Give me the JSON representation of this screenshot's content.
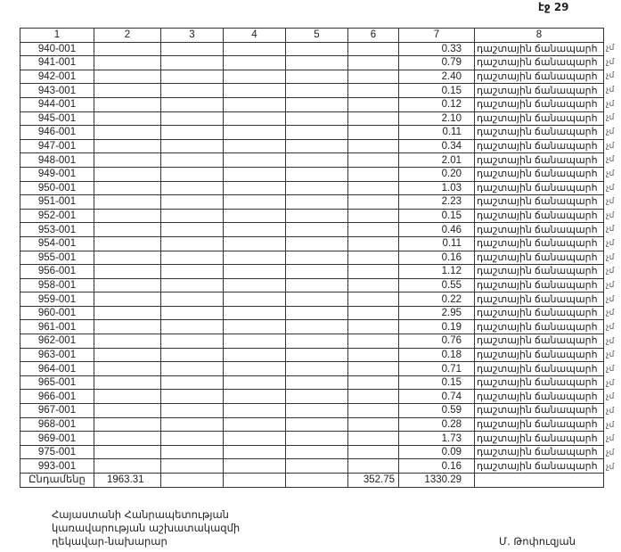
{
  "page_label": "էջ 29",
  "columns": [
    "1",
    "2",
    "3",
    "4",
    "5",
    "6",
    "7",
    "8"
  ],
  "rows": [
    {
      "id": "940-001",
      "c7": "0.33",
      "c8": "դաշտային ճանապարհ"
    },
    {
      "id": "941-001",
      "c7": "0.79",
      "c8": "դաշտային ճանապարհ"
    },
    {
      "id": "942-001",
      "c7": "2.40",
      "c8": "դաշտային ճանապարհ"
    },
    {
      "id": "943-001",
      "c7": "0.15",
      "c8": "դաշտային ճանապարհ"
    },
    {
      "id": "944-001",
      "c7": "0.12",
      "c8": "դաշտային ճանապարհ"
    },
    {
      "id": "945-001",
      "c7": "2.10",
      "c8": "դաշտային ճանապարհ"
    },
    {
      "id": "946-001",
      "c7": "0.11",
      "c8": "դաշտային ճանապարհ"
    },
    {
      "id": "947-001",
      "c7": "0.34",
      "c8": "դաշտային ճանապարհ"
    },
    {
      "id": "948-001",
      "c7": "2.01",
      "c8": "դաշտային ճանապարհ"
    },
    {
      "id": "949-001",
      "c7": "0.20",
      "c8": "դաշտային ճանապարհ"
    },
    {
      "id": "950-001",
      "c7": "1.03",
      "c8": "դաշտային ճանապարհ"
    },
    {
      "id": "951-001",
      "c7": "2.23",
      "c8": "դաշտային ճանապարհ"
    },
    {
      "id": "952-001",
      "c7": "0.15",
      "c8": "դաշտային ճանապարհ"
    },
    {
      "id": "953-001",
      "c7": "0.46",
      "c8": "դաշտային ճանապարհ"
    },
    {
      "id": "954-001",
      "c7": "0.11",
      "c8": "դաշտային ճանապարհ"
    },
    {
      "id": "955-001",
      "c7": "0.16",
      "c8": "դաշտային ճանապարհ"
    },
    {
      "id": "956-001",
      "c7": "1.12",
      "c8": "դաշտային ճանապարհ"
    },
    {
      "id": "958-001",
      "c7": "0.55",
      "c8": "դաշտային ճանապարհ"
    },
    {
      "id": "959-001",
      "c7": "0.22",
      "c8": "դաշտային ճանապարհ"
    },
    {
      "id": "960-001",
      "c7": "2.95",
      "c8": "դաշտային ճանապարհ"
    },
    {
      "id": "961-001",
      "c7": "0.19",
      "c8": "դաշտային ճանապարհ"
    },
    {
      "id": "962-001",
      "c7": "0.76",
      "c8": "դաշտային ճանապարհ"
    },
    {
      "id": "963-001",
      "c7": "0.18",
      "c8": "դաշտային ճանապարհ"
    },
    {
      "id": "964-001",
      "c7": "0.71",
      "c8": "դաշտային ճանապարհ"
    },
    {
      "id": "965-001",
      "c7": "0.15",
      "c8": "դաշտային ճանապարհ"
    },
    {
      "id": "966-001",
      "c7": "0.74",
      "c8": "դաշտային ճանապարհ"
    },
    {
      "id": "967-001",
      "c7": "0.59",
      "c8": "դաշտային ճանապարհ"
    },
    {
      "id": "968-001",
      "c7": "0.28",
      "c8": "դաշտային ճանապարհ"
    },
    {
      "id": "969-001",
      "c7": "1.73",
      "c8": "դաշտային ճանապարհ"
    },
    {
      "id": "975-001",
      "c7": "0.09",
      "c8": "դաշտային ճանապարհ"
    },
    {
      "id": "993-001",
      "c7": "0.16",
      "c8": "դաշտային ճանապարհ"
    }
  ],
  "side_fragment": "չմ",
  "total": {
    "label": "Ընդամենը",
    "c2": "1963.31",
    "c6": "352.75",
    "c7": "1330.29"
  },
  "footer": {
    "line1": "Հայաստանի Հանրապետության",
    "line2": "կառավարության աշխատակազմի",
    "line3": "ղեկավար-նախարար",
    "signatory": "Մ. Թոփուզյան"
  }
}
